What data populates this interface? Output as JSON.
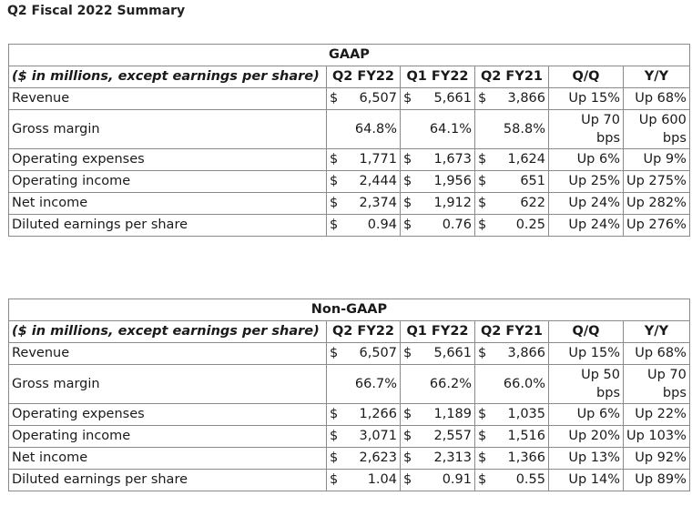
{
  "page_title": "Q2 Fiscal 2022 Summary",
  "tables": [
    {
      "section": "GAAP",
      "columns": [
        "($ in millions, except earnings per share)",
        "Q2 FY22",
        "Q1 FY22",
        "Q2 FY21",
        "Q/Q",
        "Y/Y"
      ],
      "rows": [
        {
          "label": "Revenue",
          "cells": [
            {
              "cur": "$",
              "val": "6,507"
            },
            {
              "cur": "$",
              "val": "5,661"
            },
            {
              "cur": "$",
              "val": "3,866"
            }
          ],
          "qq": [
            "Up 15%"
          ],
          "yy": [
            "Up 68%"
          ]
        },
        {
          "label": "Gross margin",
          "cells": [
            {
              "cur": "",
              "val": "64.8%"
            },
            {
              "cur": "",
              "val": "64.1%"
            },
            {
              "cur": "",
              "val": "58.8%"
            }
          ],
          "qq": [
            "Up 70",
            "bps"
          ],
          "yy": [
            "Up 600",
            "bps"
          ]
        },
        {
          "label": "Operating expenses",
          "cells": [
            {
              "cur": "$",
              "val": "1,771"
            },
            {
              "cur": "$",
              "val": "1,673"
            },
            {
              "cur": "$",
              "val": "1,624"
            }
          ],
          "qq": [
            "Up 6%"
          ],
          "yy": [
            "Up 9%"
          ]
        },
        {
          "label": "Operating income",
          "cells": [
            {
              "cur": "$",
              "val": "2,444"
            },
            {
              "cur": "$",
              "val": "1,956"
            },
            {
              "cur": "$",
              "val": "651"
            }
          ],
          "qq": [
            "Up 25%"
          ],
          "yy": [
            "Up 275%"
          ]
        },
        {
          "label": "Net income",
          "cells": [
            {
              "cur": "$",
              "val": "2,374"
            },
            {
              "cur": "$",
              "val": "1,912"
            },
            {
              "cur": "$",
              "val": "622"
            }
          ],
          "qq": [
            "Up 24%"
          ],
          "yy": [
            "Up 282%"
          ]
        },
        {
          "label": "Diluted earnings per share",
          "cells": [
            {
              "cur": "$",
              "val": "0.94"
            },
            {
              "cur": "$",
              "val": "0.76"
            },
            {
              "cur": "$",
              "val": "0.25"
            }
          ],
          "qq": [
            "Up 24%"
          ],
          "yy": [
            "Up 276%"
          ]
        }
      ]
    },
    {
      "section": "Non-GAAP",
      "columns": [
        "($ in millions, except earnings per share)",
        "Q2 FY22",
        "Q1 FY22",
        "Q2 FY21",
        "Q/Q",
        "Y/Y"
      ],
      "rows": [
        {
          "label": "Revenue",
          "cells": [
            {
              "cur": "$",
              "val": "6,507"
            },
            {
              "cur": "$",
              "val": "5,661"
            },
            {
              "cur": "$",
              "val": "3,866"
            }
          ],
          "qq": [
            "Up 15%"
          ],
          "yy": [
            "Up 68%"
          ]
        },
        {
          "label": "Gross margin",
          "cells": [
            {
              "cur": "",
              "val": "66.7%"
            },
            {
              "cur": "",
              "val": "66.2%"
            },
            {
              "cur": "",
              "val": "66.0%"
            }
          ],
          "qq": [
            "Up 50",
            "bps"
          ],
          "yy": [
            "Up 70",
            "bps"
          ]
        },
        {
          "label": "Operating expenses",
          "cells": [
            {
              "cur": "$",
              "val": "1,266"
            },
            {
              "cur": "$",
              "val": "1,189"
            },
            {
              "cur": "$",
              "val": "1,035"
            }
          ],
          "qq": [
            "Up 6%"
          ],
          "yy": [
            "Up 22%"
          ]
        },
        {
          "label": "Operating income",
          "cells": [
            {
              "cur": "$",
              "val": "3,071"
            },
            {
              "cur": "$",
              "val": "2,557"
            },
            {
              "cur": "$",
              "val": "1,516"
            }
          ],
          "qq": [
            "Up 20%"
          ],
          "yy": [
            "Up 103%"
          ]
        },
        {
          "label": "Net income",
          "cells": [
            {
              "cur": "$",
              "val": "2,623"
            },
            {
              "cur": "$",
              "val": "2,313"
            },
            {
              "cur": "$",
              "val": "1,366"
            }
          ],
          "qq": [
            "Up 13%"
          ],
          "yy": [
            "Up 92%"
          ]
        },
        {
          "label": "Diluted earnings per share",
          "cells": [
            {
              "cur": "$",
              "val": "1.04"
            },
            {
              "cur": "$",
              "val": "0.91"
            },
            {
              "cur": "$",
              "val": "0.55"
            }
          ],
          "qq": [
            "Up 14%"
          ],
          "yy": [
            "Up 89%"
          ]
        }
      ]
    }
  ]
}
